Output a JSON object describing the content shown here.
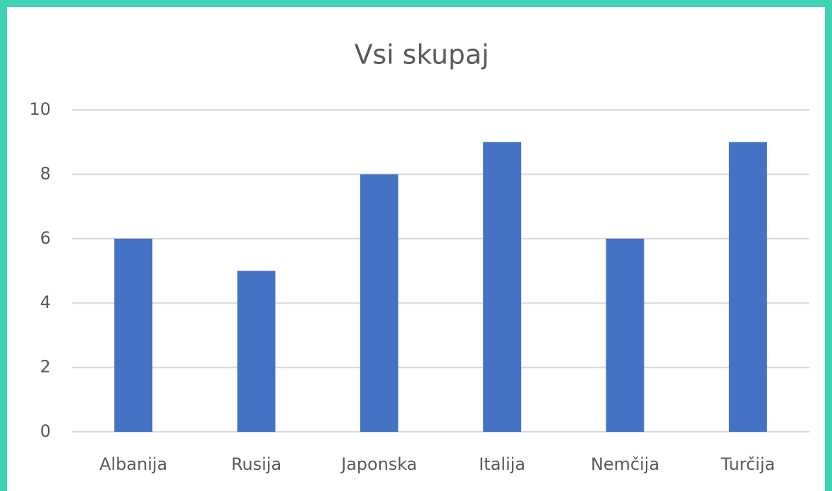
{
  "chart_data": {
    "type": "bar",
    "title": "Vsi skupaj",
    "categories": [
      "Albanija",
      "Rusija",
      "Japonska",
      "Italija",
      "Nemčija",
      "Turčija"
    ],
    "values": [
      6,
      5,
      8,
      9,
      6,
      9
    ],
    "color": "#4472c4",
    "ylim": [
      0,
      10
    ],
    "yticks": [
      0,
      2,
      4,
      6,
      8,
      10
    ],
    "grid": true
  }
}
